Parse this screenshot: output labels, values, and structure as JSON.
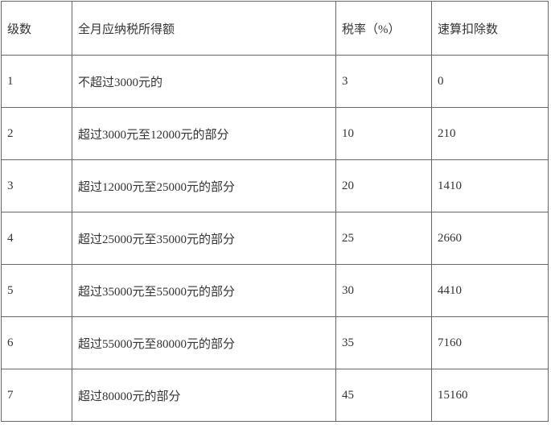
{
  "table": {
    "headers": {
      "level": "级数",
      "income": "全月应纳税所得额",
      "rate": "税率（%）",
      "deduction": "速算扣除数"
    },
    "rows": [
      {
        "level": "1",
        "income": "不超过3000元的",
        "rate": "3",
        "deduction": "0"
      },
      {
        "level": "2",
        "income": "超过3000元至12000元的部分",
        "rate": "10",
        "deduction": "210"
      },
      {
        "level": "3",
        "income": "超过12000元至25000元的部分",
        "rate": "20",
        "deduction": "1410"
      },
      {
        "level": "4",
        "income": "超过25000元至35000元的部分",
        "rate": "25",
        "deduction": "2660"
      },
      {
        "level": "5",
        "income": "超过35000元至55000元的部分",
        "rate": "30",
        "deduction": "4410"
      },
      {
        "level": "6",
        "income": "超过55000元至80000元的部分",
        "rate": "35",
        "deduction": "7160"
      },
      {
        "level": "7",
        "income": "超过80000元的部分",
        "rate": "45",
        "deduction": "15160"
      }
    ],
    "colors": {
      "border": "#666666",
      "text": "#333333",
      "background": "#ffffff"
    }
  }
}
